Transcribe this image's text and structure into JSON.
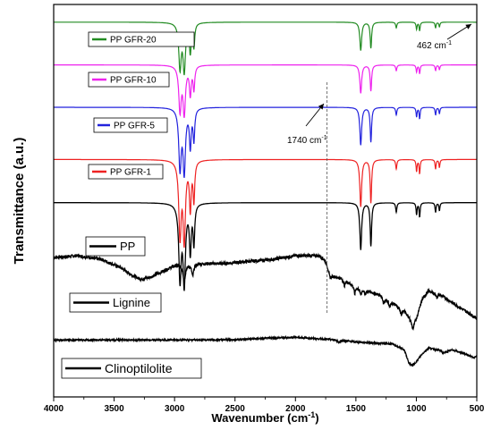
{
  "chart_data": {
    "type": "line",
    "xlabel": "Wavenumber (cm⁻¹)",
    "ylabel": "Transmittance (a.u.)",
    "xlim": [
      4000,
      500
    ],
    "x_reversed": true,
    "x_ticks": [
      4000,
      3500,
      3000,
      2500,
      2000,
      1500,
      1000,
      500
    ],
    "grid": false,
    "series": [
      {
        "name": "PP GFR-20",
        "color": "#228B22",
        "offset": 0.955,
        "amp": 0.12,
        "peaks": [
          [
            2955,
            0.95,
            12
          ],
          [
            2920,
            1.0,
            12
          ],
          [
            2870,
            0.6,
            9
          ],
          [
            2840,
            0.5,
            8
          ],
          [
            1460,
            0.6,
            9
          ],
          [
            1376,
            0.55,
            7
          ],
          [
            1166,
            0.12,
            6
          ],
          [
            998,
            0.15,
            5
          ],
          [
            973,
            0.18,
            5
          ],
          [
            841,
            0.12,
            5
          ],
          [
            809,
            0.1,
            5
          ],
          [
            462,
            0.05,
            12
          ]
        ]
      },
      {
        "name": "PP GFR-10",
        "color": "#EE22EE",
        "offset": 0.846,
        "amp": 0.12,
        "peaks": [
          [
            2955,
            0.95,
            12
          ],
          [
            2920,
            1.0,
            12
          ],
          [
            2870,
            0.6,
            9
          ],
          [
            2840,
            0.5,
            8
          ],
          [
            1460,
            0.6,
            9
          ],
          [
            1376,
            0.55,
            7
          ],
          [
            1166,
            0.12,
            6
          ],
          [
            998,
            0.15,
            5
          ],
          [
            973,
            0.18,
            5
          ],
          [
            841,
            0.12,
            5
          ],
          [
            809,
            0.1,
            5
          ]
        ]
      },
      {
        "name": "PP GFR-5",
        "color": "#2222DD",
        "offset": 0.738,
        "amp": 0.16,
        "peaks": [
          [
            2955,
            0.95,
            12
          ],
          [
            2920,
            1.0,
            12
          ],
          [
            2870,
            0.6,
            9
          ],
          [
            2840,
            0.5,
            8
          ],
          [
            1460,
            0.6,
            9
          ],
          [
            1376,
            0.55,
            7
          ],
          [
            1166,
            0.12,
            6
          ],
          [
            998,
            0.15,
            5
          ],
          [
            973,
            0.18,
            5
          ],
          [
            841,
            0.12,
            5
          ],
          [
            809,
            0.1,
            5
          ]
        ]
      },
      {
        "name": "PP GFR-1",
        "color": "#EE2222",
        "offset": 0.605,
        "amp": 0.2,
        "peaks": [
          [
            2955,
            0.95,
            12
          ],
          [
            2920,
            1.0,
            12
          ],
          [
            2870,
            0.6,
            9
          ],
          [
            2840,
            0.5,
            8
          ],
          [
            1460,
            0.6,
            9
          ],
          [
            1376,
            0.55,
            7
          ],
          [
            1166,
            0.12,
            6
          ],
          [
            998,
            0.15,
            5
          ],
          [
            973,
            0.18,
            5
          ],
          [
            841,
            0.12,
            5
          ],
          [
            809,
            0.1,
            5
          ]
        ]
      },
      {
        "name": "PP",
        "color": "#000000",
        "offset": 0.495,
        "amp": 0.2,
        "peaks": [
          [
            2955,
            0.95,
            12
          ],
          [
            2920,
            1.0,
            12
          ],
          [
            2870,
            0.6,
            9
          ],
          [
            2840,
            0.5,
            8
          ],
          [
            1460,
            0.6,
            9
          ],
          [
            1376,
            0.55,
            7
          ],
          [
            1166,
            0.12,
            6
          ],
          [
            998,
            0.15,
            5
          ],
          [
            973,
            0.18,
            5
          ],
          [
            841,
            0.12,
            5
          ],
          [
            809,
            0.1,
            5
          ]
        ]
      },
      {
        "name": "Lignine",
        "color": "#000000",
        "offset": 0.35,
        "amp": 0.05,
        "baseline": [
          [
            4000,
            0.355
          ],
          [
            3800,
            0.36
          ],
          [
            3600,
            0.35
          ],
          [
            3450,
            0.33
          ],
          [
            3350,
            0.31
          ],
          [
            3280,
            0.3
          ],
          [
            3200,
            0.305
          ],
          [
            3100,
            0.32
          ],
          [
            3000,
            0.335
          ],
          [
            2800,
            0.34
          ],
          [
            2600,
            0.34
          ],
          [
            2400,
            0.345
          ],
          [
            2200,
            0.35
          ],
          [
            2000,
            0.36
          ],
          [
            1800,
            0.36
          ],
          [
            1760,
            0.35
          ],
          [
            1700,
            0.31
          ],
          [
            1600,
            0.3
          ],
          [
            1500,
            0.28
          ],
          [
            1400,
            0.27
          ],
          [
            1300,
            0.26
          ],
          [
            1200,
            0.24
          ],
          [
            1100,
            0.22
          ],
          [
            1050,
            0.2
          ],
          [
            1030,
            0.19
          ],
          [
            1000,
            0.2
          ],
          [
            950,
            0.25
          ],
          [
            900,
            0.27
          ],
          [
            800,
            0.26
          ],
          [
            700,
            0.24
          ],
          [
            600,
            0.22
          ],
          [
            500,
            0.2
          ]
        ],
        "peaks": [
          [
            2920,
            0.8,
            12
          ],
          [
            2850,
            0.6,
            10
          ],
          [
            1715,
            0.3,
            10
          ],
          [
            1595,
            0.3,
            8
          ],
          [
            1510,
            0.4,
            6
          ],
          [
            1460,
            0.3,
            8
          ],
          [
            1425,
            0.25,
            6
          ],
          [
            1270,
            0.3,
            8
          ],
          [
            1220,
            0.3,
            8
          ],
          [
            1125,
            0.3,
            8
          ],
          [
            1030,
            0.35,
            10
          ],
          [
            830,
            0.2,
            8
          ]
        ],
        "noise": 0.004
      },
      {
        "name": "Clinoptilolite",
        "color": "#000000",
        "offset": 0.145,
        "amp": 0.06,
        "baseline": [
          [
            4000,
            0.145
          ],
          [
            3500,
            0.145
          ],
          [
            3000,
            0.145
          ],
          [
            2500,
            0.146
          ],
          [
            2200,
            0.15
          ],
          [
            2000,
            0.152
          ],
          [
            1800,
            0.148
          ],
          [
            1640,
            0.145
          ],
          [
            1500,
            0.14
          ],
          [
            1200,
            0.135
          ],
          [
            1100,
            0.12
          ],
          [
            1060,
            0.085
          ],
          [
            1030,
            0.08
          ],
          [
            1000,
            0.09
          ],
          [
            950,
            0.11
          ],
          [
            900,
            0.125
          ],
          [
            800,
            0.118
          ],
          [
            780,
            0.112
          ],
          [
            700,
            0.12
          ],
          [
            600,
            0.11
          ],
          [
            520,
            0.1
          ],
          [
            500,
            0.105
          ]
        ],
        "peaks": [
          [
            1640,
            0.1,
            12
          ]
        ],
        "noise": 0.002
      }
    ],
    "annotations": [
      {
        "text": "462 cm",
        "sup": "-1",
        "x": 462
      },
      {
        "text": "1740 cm",
        "sup": "-1",
        "x": 1740
      }
    ],
    "vline_x": 1740
  },
  "legend": [
    {
      "label": "PP GFR-20",
      "color": "#228B22"
    },
    {
      "label": "PP GFR-10",
      "color": "#EE22EE"
    },
    {
      "label": "PP GFR-5",
      "color": "#2222DD"
    },
    {
      "label": "PP GFR-1",
      "color": "#EE2222"
    },
    {
      "label": "PP",
      "color": "#000000"
    },
    {
      "label": "Lignine",
      "color": "#000000"
    },
    {
      "label": "Clinoptilolite",
      "color": "#000000"
    }
  ]
}
